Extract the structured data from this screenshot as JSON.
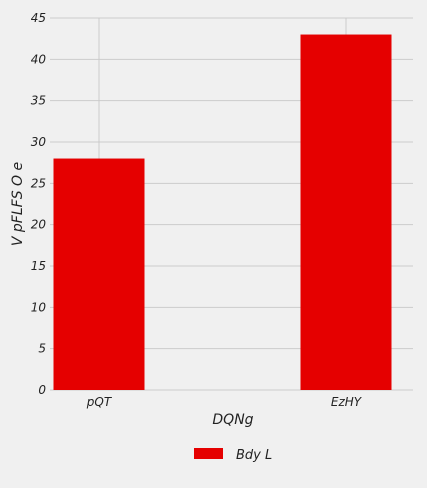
{
  "chart_data": {
    "type": "bar",
    "categories": [
      "pQT",
      "EzHY"
    ],
    "series": [
      {
        "name": "Bdy L",
        "values": [
          28,
          43
        ],
        "color": "#e50000"
      }
    ],
    "xlabel": "DQNg",
    "ylabel": "V pFLFS O e",
    "ylim": [
      0,
      45
    ],
    "yticks": [
      0,
      5,
      10,
      15,
      20,
      25,
      30,
      35,
      40,
      45
    ],
    "grid": true,
    "legend_position": "bottom-center",
    "background_color": "#f0f0f0",
    "grid_color": "#cbcbcb"
  }
}
